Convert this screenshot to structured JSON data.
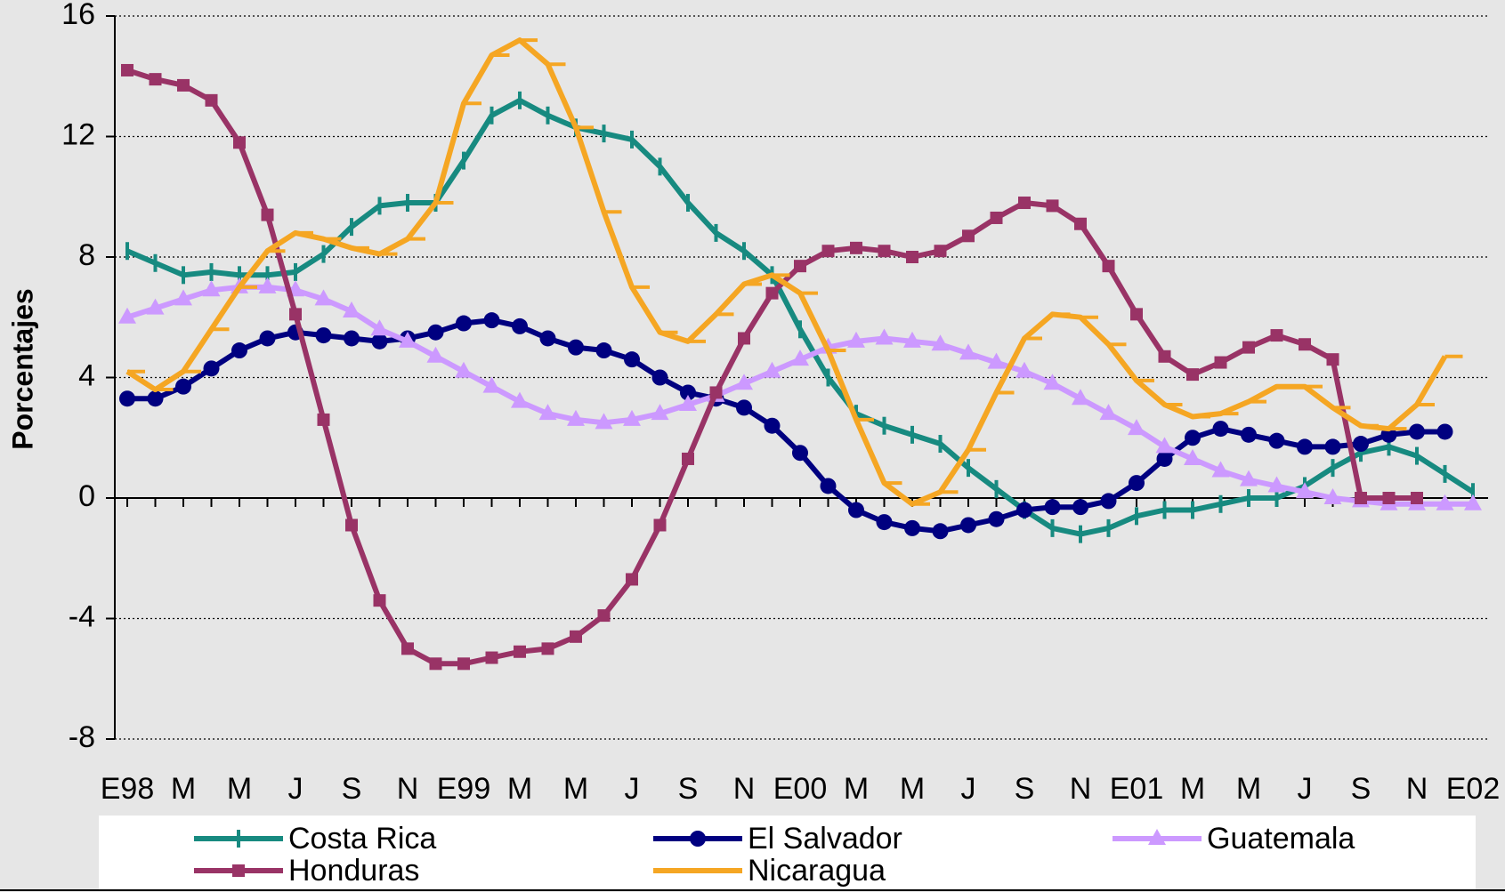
{
  "chart_data": {
    "type": "line",
    "y_label": "Porcentajes",
    "categories": [
      "E98",
      null,
      "M",
      null,
      "M",
      null,
      "J",
      null,
      "S",
      null,
      "N",
      null,
      "E99",
      null,
      "M",
      null,
      "M",
      null,
      "J",
      null,
      "S",
      null,
      "N",
      null,
      "E00",
      null,
      "M",
      null,
      "M",
      null,
      "J",
      null,
      "S",
      null,
      "N",
      null,
      "E01",
      null,
      "M",
      null,
      "M",
      null,
      "J",
      null,
      "S",
      null,
      "N",
      null,
      "E02"
    ],
    "series": [
      {
        "name": "Costa Rica",
        "color": "#178a80",
        "marker": "tick",
        "values": [
          8.2,
          7.8,
          7.4,
          7.5,
          7.4,
          7.4,
          7.5,
          8.1,
          9.0,
          9.7,
          9.8,
          9.8,
          11.2,
          12.7,
          13.2,
          12.7,
          12.3,
          12.1,
          11.9,
          11.0,
          9.8,
          8.8,
          8.2,
          7.4,
          5.6,
          4.0,
          2.8,
          2.4,
          2.1,
          1.8,
          1.0,
          0.3,
          -0.4,
          -1.0,
          -1.2,
          -1.0,
          -0.6,
          -0.4,
          -0.4,
          -0.2,
          0.0,
          0.0,
          0.4,
          1.0,
          1.5,
          1.7,
          1.4,
          0.8,
          0.2
        ]
      },
      {
        "name": "El Salvador",
        "color": "#000080",
        "marker": "circle",
        "values": [
          3.3,
          3.3,
          3.7,
          4.3,
          4.9,
          5.3,
          5.5,
          5.4,
          5.3,
          5.2,
          5.3,
          5.5,
          5.8,
          5.9,
          5.7,
          5.3,
          5.0,
          4.9,
          4.6,
          4.0,
          3.5,
          3.3,
          3.0,
          2.4,
          1.5,
          0.4,
          -0.4,
          -0.8,
          -1.0,
          -1.1,
          -0.9,
          -0.7,
          -0.4,
          -0.3,
          -0.3,
          -0.1,
          0.5,
          1.3,
          2.0,
          2.3,
          2.1,
          1.9,
          1.7,
          1.7,
          1.8,
          2.1,
          2.2,
          2.2,
          null
        ]
      },
      {
        "name": "Guatemala",
        "color": "#cc99ff",
        "marker": "triangle",
        "values": [
          6.0,
          6.3,
          6.6,
          6.9,
          7.0,
          7.0,
          6.9,
          6.6,
          6.2,
          5.6,
          5.2,
          4.7,
          4.2,
          3.7,
          3.2,
          2.8,
          2.6,
          2.5,
          2.6,
          2.8,
          3.1,
          3.4,
          3.8,
          4.2,
          4.6,
          5.0,
          5.2,
          5.3,
          5.2,
          5.1,
          4.8,
          4.5,
          4.2,
          3.8,
          3.3,
          2.8,
          2.3,
          1.7,
          1.3,
          0.9,
          0.6,
          0.4,
          0.2,
          0.0,
          -0.1,
          -0.2,
          -0.2,
          -0.2,
          -0.2
        ]
      },
      {
        "name": "Honduras",
        "color": "#993366",
        "marker": "square",
        "values": [
          14.2,
          13.9,
          13.7,
          13.2,
          11.8,
          9.4,
          6.1,
          2.6,
          -0.9,
          -3.4,
          -5.0,
          -5.5,
          -5.5,
          -5.3,
          -5.1,
          -5.0,
          -4.6,
          -3.9,
          -2.7,
          -0.9,
          1.3,
          3.5,
          5.3,
          6.8,
          7.7,
          8.2,
          8.3,
          8.2,
          8.0,
          8.2,
          8.7,
          9.3,
          9.8,
          9.7,
          9.1,
          7.7,
          6.1,
          4.7,
          4.1,
          4.5,
          5.0,
          5.4,
          5.1,
          4.6,
          0.0,
          0.0,
          0.0,
          null,
          null
        ]
      },
      {
        "name": "Nicaragua",
        "color": "#f5a623",
        "marker": "dash",
        "values": [
          4.2,
          3.6,
          4.2,
          5.6,
          7.0,
          8.2,
          8.8,
          8.6,
          8.3,
          8.1,
          8.6,
          9.8,
          13.1,
          14.7,
          15.2,
          14.4,
          12.3,
          9.5,
          7.0,
          5.5,
          5.2,
          6.1,
          7.1,
          7.4,
          6.8,
          4.9,
          2.6,
          0.5,
          -0.2,
          0.2,
          1.6,
          3.5,
          5.3,
          6.1,
          6.0,
          5.1,
          3.9,
          3.1,
          2.7,
          2.8,
          3.2,
          3.7,
          3.7,
          3.0,
          2.4,
          2.3,
          3.1,
          4.7,
          null
        ]
      }
    ],
    "ylim": [
      -8,
      16
    ],
    "yticks": [
      -8,
      -4,
      0,
      4,
      8,
      12,
      16
    ],
    "grid": true
  }
}
